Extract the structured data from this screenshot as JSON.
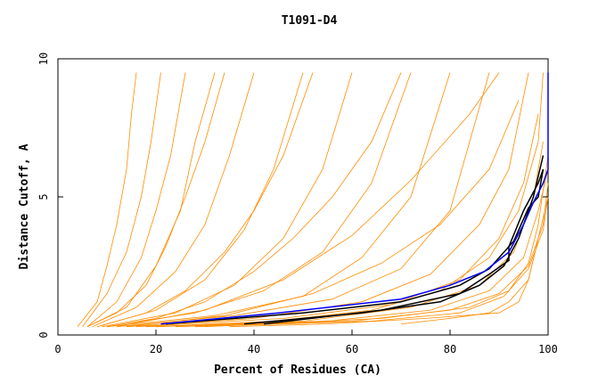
{
  "chart_data": {
    "type": "line",
    "title": "T1091-D4",
    "xlabel": "Percent of Residues (CA)",
    "ylabel": "Distance Cutoff, A",
    "xlim": [
      0,
      100
    ],
    "ylim": [
      0,
      10
    ],
    "x_ticks": [
      "0",
      "20",
      "40",
      "60",
      "80",
      "100"
    ],
    "y_ticks": [
      "0",
      "5",
      "10"
    ],
    "grid": false,
    "legend": "none",
    "colors": {
      "orange": "#ff8c00",
      "black": "#000000",
      "blue": "#0000ff"
    },
    "series": [
      {
        "color": "orange",
        "points": [
          [
            4,
            0.3
          ],
          [
            8,
            1.2
          ],
          [
            10,
            2.5
          ],
          [
            12,
            4
          ],
          [
            14,
            6
          ],
          [
            15,
            8
          ],
          [
            16,
            9.5
          ]
        ]
      },
      {
        "color": "orange",
        "points": [
          [
            5,
            0.3
          ],
          [
            10,
            1.5
          ],
          [
            14,
            3
          ],
          [
            17,
            5
          ],
          [
            19,
            7
          ],
          [
            21,
            9.5
          ]
        ]
      },
      {
        "color": "orange",
        "points": [
          [
            6,
            0.3
          ],
          [
            12,
            1.2
          ],
          [
            17,
            2.8
          ],
          [
            20,
            4.5
          ],
          [
            23,
            6.5
          ],
          [
            26,
            9.5
          ]
        ]
      },
      {
        "color": "orange",
        "points": [
          [
            6,
            0.3
          ],
          [
            14,
            1
          ],
          [
            20,
            2.5
          ],
          [
            25,
            4.5
          ],
          [
            28,
            7
          ],
          [
            32,
            9.5
          ]
        ]
      },
      {
        "color": "orange",
        "points": [
          [
            7,
            0.3
          ],
          [
            16,
            1
          ],
          [
            24,
            2.3
          ],
          [
            30,
            4
          ],
          [
            35,
            6.5
          ],
          [
            40,
            9.5
          ]
        ]
      },
      {
        "color": "orange",
        "points": [
          [
            8,
            0.3
          ],
          [
            20,
            0.9
          ],
          [
            30,
            2
          ],
          [
            38,
            3.8
          ],
          [
            44,
            6
          ],
          [
            50,
            9.5
          ]
        ]
      },
      {
        "color": "orange",
        "points": [
          [
            9,
            0.3
          ],
          [
            24,
            0.8
          ],
          [
            36,
            1.8
          ],
          [
            46,
            3.5
          ],
          [
            54,
            6
          ],
          [
            60,
            9.5
          ]
        ]
      },
      {
        "color": "orange",
        "points": [
          [
            10,
            0.3
          ],
          [
            28,
            0.8
          ],
          [
            42,
            1.6
          ],
          [
            54,
            3
          ],
          [
            64,
            5.5
          ],
          [
            72,
            9.5
          ]
        ]
      },
      {
        "color": "orange",
        "points": [
          [
            10,
            0.3
          ],
          [
            32,
            0.7
          ],
          [
            50,
            1.4
          ],
          [
            62,
            2.8
          ],
          [
            72,
            5
          ],
          [
            80,
            9.5
          ]
        ]
      },
      {
        "color": "orange",
        "points": [
          [
            12,
            0.3
          ],
          [
            36,
            0.7
          ],
          [
            56,
            1.3
          ],
          [
            70,
            2.4
          ],
          [
            80,
            4.5
          ],
          [
            88,
            9.5
          ]
        ]
      },
      {
        "color": "orange",
        "points": [
          [
            14,
            0.3
          ],
          [
            40,
            0.6
          ],
          [
            62,
            1.2
          ],
          [
            76,
            2.2
          ],
          [
            86,
            4
          ],
          [
            92,
            6
          ],
          [
            96,
            9.5
          ]
        ]
      },
      {
        "color": "orange",
        "points": [
          [
            16,
            0.3
          ],
          [
            46,
            0.6
          ],
          [
            68,
            1.1
          ],
          [
            82,
            2
          ],
          [
            90,
            3.5
          ],
          [
            95,
            5.5
          ],
          [
            98,
            8
          ]
        ]
      },
      {
        "color": "orange",
        "points": [
          [
            18,
            0.3
          ],
          [
            50,
            0.5
          ],
          [
            72,
            1
          ],
          [
            86,
            1.8
          ],
          [
            93,
            3
          ],
          [
            97,
            5
          ],
          [
            99,
            7
          ]
        ]
      },
      {
        "color": "orange",
        "points": [
          [
            20,
            0.3
          ],
          [
            55,
            0.5
          ],
          [
            76,
            0.9
          ],
          [
            88,
            1.6
          ],
          [
            95,
            2.8
          ],
          [
            98,
            4.5
          ],
          [
            100,
            6
          ]
        ]
      },
      {
        "color": "orange",
        "points": [
          [
            24,
            0.3
          ],
          [
            60,
            0.5
          ],
          [
            80,
            0.9
          ],
          [
            90,
            1.5
          ],
          [
            96,
            2.5
          ],
          [
            99,
            4
          ],
          [
            100,
            5.5
          ]
        ]
      },
      {
        "color": "orange",
        "points": [
          [
            28,
            0.3
          ],
          [
            64,
            0.5
          ],
          [
            82,
            0.8
          ],
          [
            91,
            1.4
          ],
          [
            96,
            2.4
          ],
          [
            99,
            3.8
          ],
          [
            100,
            5
          ]
        ]
      },
      {
        "color": "orange",
        "points": [
          [
            30,
            0.3
          ],
          [
            66,
            0.6
          ],
          [
            84,
            1
          ],
          [
            92,
            1.6
          ],
          [
            96,
            2.6
          ],
          [
            98,
            4
          ],
          [
            100,
            6.5
          ]
        ]
      },
      {
        "color": "orange",
        "points": [
          [
            10,
            0.3
          ],
          [
            20,
            0.6
          ],
          [
            30,
            1.2
          ],
          [
            40,
            2.3
          ],
          [
            48,
            3.5
          ],
          [
            56,
            5
          ],
          [
            64,
            7
          ],
          [
            70,
            9.5
          ]
        ]
      },
      {
        "color": "orange",
        "points": [
          [
            8,
            0.3
          ],
          [
            18,
            0.8
          ],
          [
            26,
            1.6
          ],
          [
            34,
            3
          ],
          [
            40,
            4.5
          ],
          [
            46,
            6.5
          ],
          [
            52,
            9.5
          ]
        ]
      },
      {
        "color": "orange",
        "points": [
          [
            6,
            0.3
          ],
          [
            12,
            0.8
          ],
          [
            18,
            1.8
          ],
          [
            22,
            3.2
          ],
          [
            26,
            5
          ],
          [
            30,
            7
          ],
          [
            34,
            9.5
          ]
        ]
      },
      {
        "color": "orange",
        "points": [
          [
            12,
            0.3
          ],
          [
            30,
            0.9
          ],
          [
            46,
            2
          ],
          [
            60,
            3.6
          ],
          [
            72,
            5.6
          ],
          [
            84,
            8
          ],
          [
            90,
            9.5
          ]
        ]
      },
      {
        "color": "orange",
        "points": [
          [
            14,
            0.3
          ],
          [
            34,
            0.7
          ],
          [
            52,
            1.5
          ],
          [
            66,
            2.6
          ],
          [
            78,
            4
          ],
          [
            88,
            6
          ],
          [
            94,
            8.5
          ]
        ]
      },
      {
        "color": "orange",
        "points": [
          [
            20,
            0.3
          ],
          [
            44,
            0.5
          ],
          [
            64,
            0.9
          ],
          [
            78,
            1.6
          ],
          [
            88,
            2.8
          ],
          [
            94,
            4.5
          ],
          [
            98,
            7
          ],
          [
            99,
            9.5
          ]
        ]
      },
      {
        "color": "orange",
        "points": [
          [
            70,
            0.4
          ],
          [
            80,
            0.6
          ],
          [
            88,
            0.8
          ],
          [
            92,
            1.2
          ],
          [
            96,
            2
          ],
          [
            98,
            3.5
          ],
          [
            100,
            5
          ]
        ]
      },
      {
        "color": "orange",
        "points": [
          [
            35,
            0.3
          ],
          [
            55,
            0.4
          ],
          [
            75,
            0.6
          ],
          [
            90,
            0.8
          ],
          [
            94,
            1.2
          ],
          [
            96,
            2
          ],
          [
            98,
            3.5
          ]
        ]
      },
      {
        "color": "black",
        "points": [
          [
            38,
            0.4
          ],
          [
            62,
            0.8
          ],
          [
            78,
            1.2
          ],
          [
            86,
            1.8
          ],
          [
            91,
            2.5
          ],
          [
            94,
            3.5
          ],
          [
            97,
            5
          ],
          [
            99,
            6.5
          ]
        ]
      },
      {
        "color": "black",
        "points": [
          [
            42,
            0.4
          ],
          [
            66,
            0.9
          ],
          [
            82,
            1.5
          ],
          [
            88,
            2.2
          ],
          [
            92,
            2.7
          ],
          [
            92,
            3.2
          ],
          [
            95,
            4.5
          ],
          [
            98,
            5.5
          ],
          [
            99,
            6
          ]
        ]
      },
      {
        "color": "black",
        "points": [
          [
            22,
            0.4
          ],
          [
            50,
            0.8
          ],
          [
            70,
            1.2
          ],
          [
            82,
            1.8
          ],
          [
            88,
            2.4
          ],
          [
            93,
            3.4
          ],
          [
            96,
            4.6
          ],
          [
            98,
            5
          ],
          [
            99,
            6
          ]
        ]
      },
      {
        "color": "blue",
        "points": [
          [
            21,
            0.4
          ],
          [
            45,
            0.8
          ],
          [
            70,
            1.3
          ],
          [
            80,
            1.8
          ],
          [
            87,
            2.3
          ],
          [
            92,
            3
          ],
          [
            95,
            4
          ],
          [
            97,
            4.8
          ],
          [
            99,
            5.5
          ],
          [
            100,
            6
          ],
          [
            100,
            9.5
          ]
        ]
      }
    ]
  }
}
